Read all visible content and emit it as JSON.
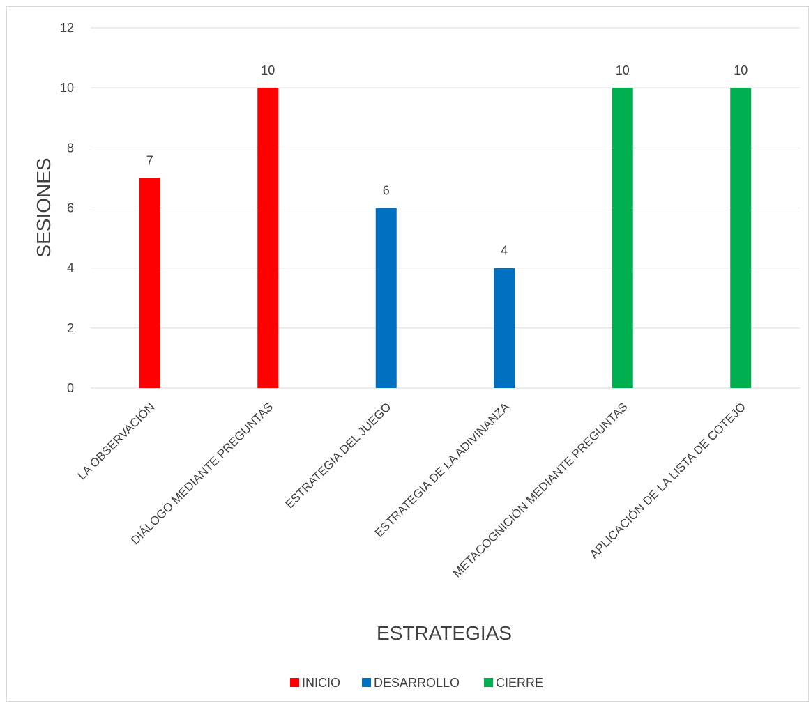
{
  "chart_data": {
    "type": "bar",
    "title": "",
    "xlabel": "ESTRATEGIAS",
    "ylabel": "SESIONES",
    "ylim": [
      0,
      12
    ],
    "yticks": [
      0,
      2,
      4,
      6,
      8,
      10,
      12
    ],
    "grid": true,
    "legend_position": "bottom",
    "categories": [
      "LA OBSERVACIÓN",
      "DIÁLOGO MEDIANTE PREGUNTAS",
      "ESTRATEGIA DEL JUEGO",
      "ESTRATEGIA DE LA ADIVINANZA",
      "METACOGNICIÓN MEDIANTE PREGUNTAS",
      "APLICACIÓN DE LA LISTA DE COTEJO"
    ],
    "series": [
      {
        "name": "INICIO",
        "color": "#ff0000",
        "values": [
          7,
          10,
          null,
          null,
          null,
          null
        ]
      },
      {
        "name": "DESARROLLO",
        "color": "#0070c0",
        "values": [
          null,
          null,
          6,
          4,
          null,
          null
        ]
      },
      {
        "name": "CIERRE",
        "color": "#00b050",
        "values": [
          null,
          null,
          null,
          null,
          10,
          10
        ]
      }
    ]
  }
}
